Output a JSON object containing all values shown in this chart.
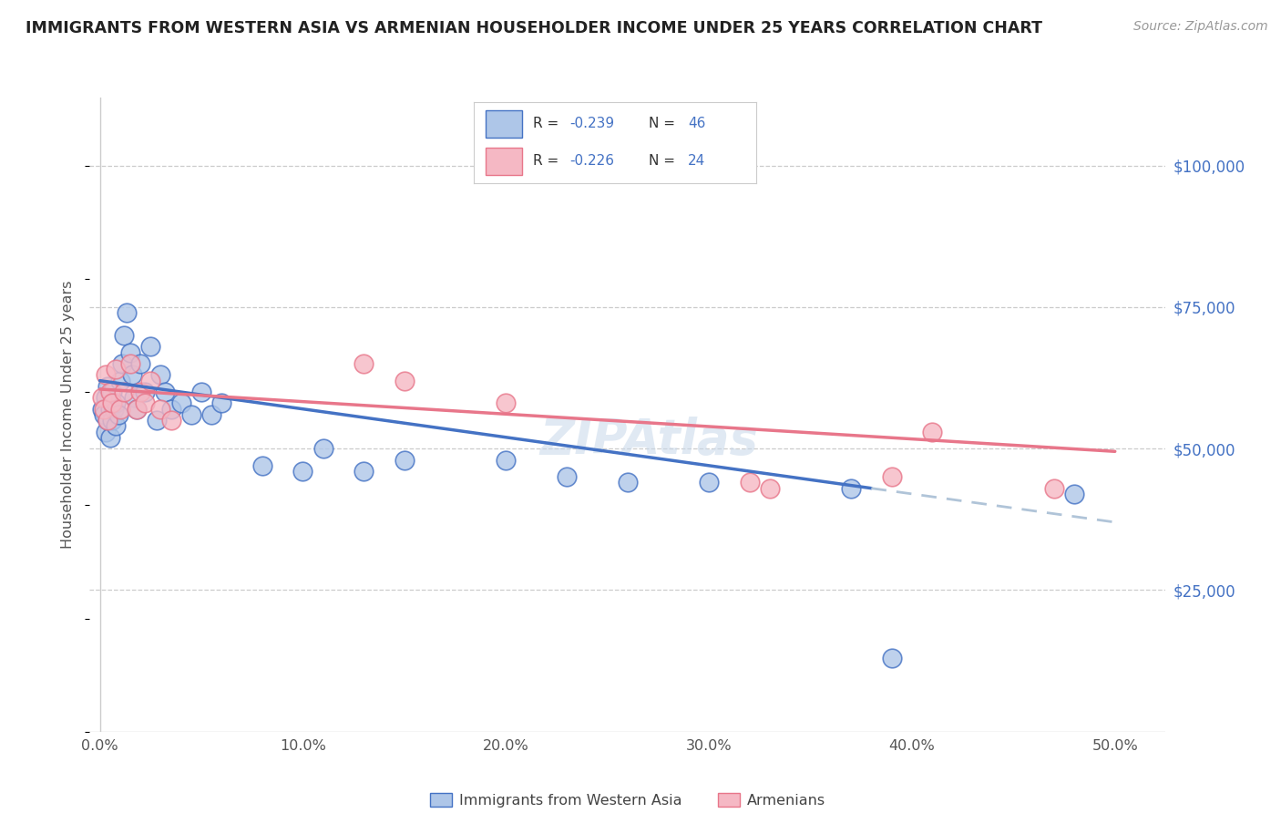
{
  "title": "IMMIGRANTS FROM WESTERN ASIA VS ARMENIAN HOUSEHOLDER INCOME UNDER 25 YEARS CORRELATION CHART",
  "source": "Source: ZipAtlas.com",
  "ylabel": "Householder Income Under 25 years",
  "xlabel_ticks": [
    "0.0%",
    "10.0%",
    "20.0%",
    "30.0%",
    "40.0%",
    "50.0%"
  ],
  "xlabel_tick_vals": [
    0.0,
    0.1,
    0.2,
    0.3,
    0.4,
    0.5
  ],
  "ytick_labels": [
    "$25,000",
    "$50,000",
    "$75,000",
    "$100,000"
  ],
  "ytick_vals": [
    25000,
    50000,
    75000,
    100000
  ],
  "xlim": [
    -0.005,
    0.525
  ],
  "ylim": [
    0,
    112000
  ],
  "legend_label1": "Immigrants from Western Asia",
  "legend_label2": "Armenians",
  "r1": "-0.239",
  "n1": "46",
  "r2": "-0.226",
  "n2": "24",
  "color_blue": "#aec6e8",
  "color_pink": "#f5b8c4",
  "color_blue_line": "#4472c4",
  "color_pink_line": "#e8768a",
  "color_blue_text": "#4472c4",
  "color_dashed_line": "#b0c4d8",
  "blue_x": [
    0.001,
    0.002,
    0.003,
    0.003,
    0.004,
    0.004,
    0.005,
    0.005,
    0.006,
    0.006,
    0.007,
    0.008,
    0.008,
    0.009,
    0.01,
    0.011,
    0.012,
    0.013,
    0.015,
    0.016,
    0.017,
    0.018,
    0.02,
    0.022,
    0.025,
    0.028,
    0.03,
    0.032,
    0.035,
    0.04,
    0.045,
    0.05,
    0.055,
    0.06,
    0.08,
    0.1,
    0.11,
    0.13,
    0.15,
    0.2,
    0.23,
    0.26,
    0.3,
    0.37,
    0.39,
    0.48
  ],
  "blue_y": [
    57000,
    56000,
    53000,
    59000,
    55000,
    61000,
    57000,
    52000,
    60000,
    55000,
    57000,
    54000,
    58000,
    56000,
    62000,
    65000,
    70000,
    74000,
    67000,
    63000,
    59000,
    57000,
    65000,
    60000,
    68000,
    55000,
    63000,
    60000,
    57000,
    58000,
    56000,
    60000,
    56000,
    58000,
    47000,
    46000,
    50000,
    46000,
    48000,
    48000,
    45000,
    44000,
    44000,
    43000,
    13000,
    42000
  ],
  "pink_x": [
    0.001,
    0.002,
    0.003,
    0.004,
    0.005,
    0.006,
    0.008,
    0.01,
    0.012,
    0.015,
    0.018,
    0.02,
    0.022,
    0.025,
    0.03,
    0.035,
    0.13,
    0.15,
    0.2,
    0.32,
    0.33,
    0.39,
    0.41,
    0.47
  ],
  "pink_y": [
    59000,
    57000,
    63000,
    55000,
    60000,
    58000,
    64000,
    57000,
    60000,
    65000,
    57000,
    60000,
    58000,
    62000,
    57000,
    55000,
    65000,
    62000,
    58000,
    44000,
    43000,
    45000,
    53000,
    43000
  ],
  "background_color": "#ffffff",
  "grid_color": "#cccccc"
}
